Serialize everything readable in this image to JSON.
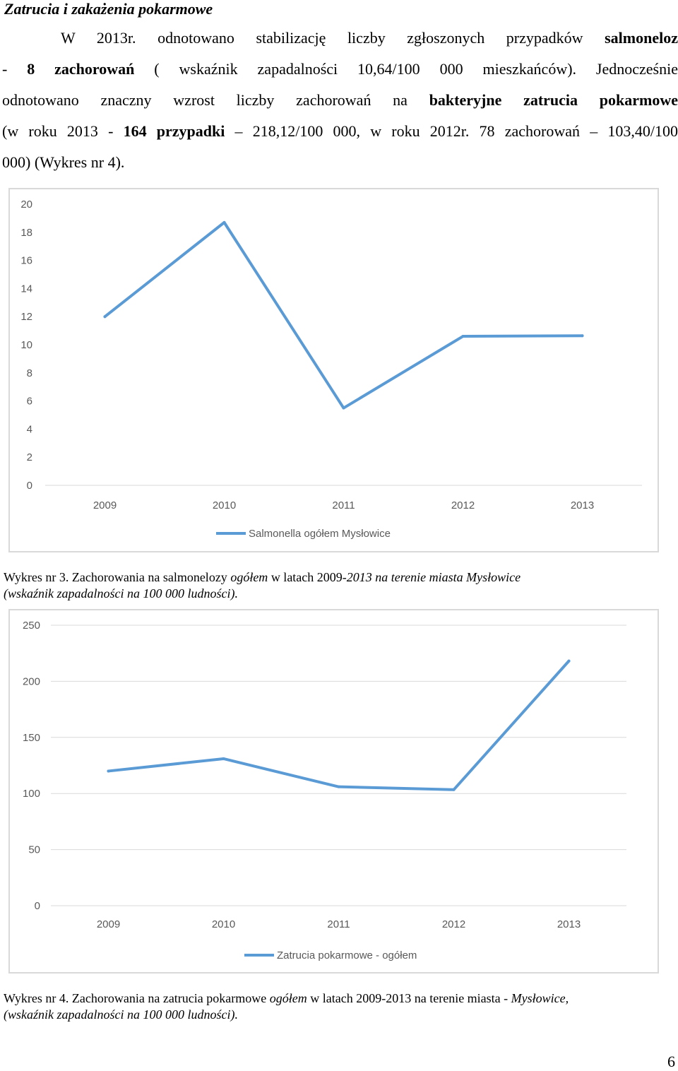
{
  "heading": "Zatrucia i zakażenia pokarmowe",
  "paragraph": {
    "l1_a": "W 2013r. odnotowano stabilizację liczby zgłoszonych przypadków ",
    "l1_b": "salmoneloz",
    "l2_a": "- ",
    "l2_b": "8 zachorowań",
    "l2_c": " ( wskaźnik zapadalności 10,64/100 000 mieszkańców). Jednocześnie",
    "l3_a": "odnotowano znaczny wzrost liczby zachorowań  na ",
    "l3_b": "bakteryjne zatrucia pokarmowe",
    "l4_a": "(w roku 2013 - ",
    "l4_b": "164 przypadki",
    "l4_c": " – 218,12/100 000, w roku 2012r. 78 zachorowań – 103,40/100",
    "l5": "000) (Wykres nr 4)."
  },
  "captions": {
    "c1_a": "Wykres nr 3. Zachorowania na salmonelozy ",
    "c1_b": "ogółem",
    "c1_c": " w latach 2009-",
    "c1_d": "2013 na terenie miasta Mysłowice",
    "c1_e": "(wskaźnik zapadalności na 100 000 ludności).",
    "c2_a": "Wykres nr 4. Zachorowania na zatrucia pokarmowe ",
    "c2_b": "ogółem",
    "c2_c": " w latach 2009-2013 na terenie miasta  - ",
    "c2_d": "Mysłowice,",
    "c2_e": "(wskaźnik zapadalności na 100 000 ludności)."
  },
  "page_number": "6",
  "line_color": "#5b9bd5",
  "chart_data": [
    {
      "type": "line",
      "categories": [
        "2009",
        "2010",
        "2011",
        "2012",
        "2013"
      ],
      "series": [
        {
          "name": "Salmonella ogółem Mysłowice",
          "values": [
            12.0,
            18.7,
            5.5,
            10.6,
            10.64
          ]
        }
      ],
      "ylim": [
        0,
        20
      ],
      "yticks": [
        "0",
        "2",
        "4",
        "6",
        "8",
        "10",
        "12",
        "14",
        "16",
        "18",
        "20"
      ],
      "grid": false,
      "legend": "bottom"
    },
    {
      "type": "line",
      "categories": [
        "2009",
        "2010",
        "2011",
        "2012",
        "2013"
      ],
      "series": [
        {
          "name": "Zatrucia pokarmowe - ogółem",
          "values": [
            120,
            131,
            106,
            103.4,
            218.12
          ]
        }
      ],
      "ylim": [
        0,
        250
      ],
      "yticks": [
        "0",
        "50",
        "100",
        "150",
        "200",
        "250"
      ],
      "grid": true,
      "legend": "bottom"
    }
  ]
}
